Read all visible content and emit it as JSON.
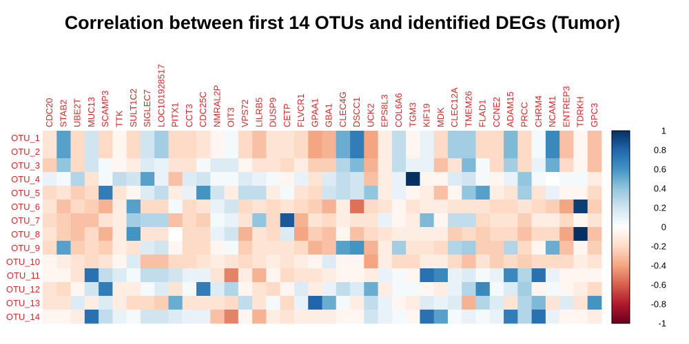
{
  "chart_data": {
    "type": "heatmap",
    "title": "Correlation between first 14 OTUs and identified DEGs (Tumor)",
    "columns": [
      "CDC20",
      "STAB2",
      "UBE2T",
      "MUC13",
      "SCAMP3",
      "TTK",
      "SULT1C2",
      "SIGLEC7",
      "LOC101928517",
      "PITX1",
      "CCT3",
      "CDC25C",
      "NMRAL2P",
      "OIT3",
      "VPS72",
      "LILRB5",
      "DUSP9",
      "CETP",
      "FLVCR1",
      "GPAA1",
      "GBA1",
      "CLEC4G",
      "DSCC1",
      "UCK2",
      "EPS8L3",
      "COL6A6",
      "TGM3",
      "KIF19",
      "MDK",
      "CLEC12A",
      "TMEM26",
      "FLAD1",
      "CCNE2",
      "ADAM15",
      "PRCC",
      "CHRM4",
      "NCAM1",
      "ENTREP3",
      "TDRKH",
      "GPC3"
    ],
    "rows": [
      "OTU_1",
      "OTU_2",
      "OTU_3",
      "OTU_4",
      "OTU_5",
      "OTU_6",
      "OTU_7",
      "OTU_8",
      "OTU_9",
      "OTU_10",
      "OTU_11",
      "OTU_12",
      "OTU_13",
      "OTU_14"
    ],
    "values": [
      [
        -0.15,
        0.55,
        -0.2,
        0.2,
        -0.2,
        -0.05,
        -0.2,
        0.2,
        0.35,
        -0.2,
        -0.2,
        -0.15,
        -0.05,
        0.05,
        -0.2,
        -0.3,
        -0.15,
        -0.15,
        -0.2,
        -0.4,
        -0.35,
        0.5,
        0.7,
        -0.4,
        -0.1,
        0.25,
        -0.05,
        0.1,
        -0.2,
        0.35,
        0.35,
        -0.2,
        -0.2,
        0.45,
        -0.2,
        0.05,
        0.65,
        -0.3,
        -0.05,
        -0.3
      ],
      [
        -0.15,
        0.55,
        -0.2,
        0.2,
        -0.2,
        -0.05,
        -0.2,
        0.2,
        0.35,
        -0.2,
        -0.2,
        -0.15,
        -0.05,
        0.05,
        -0.2,
        -0.3,
        -0.15,
        -0.15,
        -0.2,
        -0.4,
        -0.35,
        0.5,
        0.7,
        -0.4,
        -0.1,
        0.25,
        -0.05,
        0.1,
        -0.2,
        0.35,
        0.35,
        -0.2,
        -0.2,
        0.45,
        -0.2,
        0.05,
        0.65,
        -0.3,
        -0.05,
        -0.3
      ],
      [
        -0.25,
        0.4,
        -0.2,
        0.2,
        0.05,
        -0.05,
        -0.1,
        0.15,
        0.1,
        -0.15,
        -0.15,
        0.05,
        0.15,
        0.15,
        -0.05,
        -0.15,
        -0.15,
        -0.2,
        -0.1,
        -0.25,
        -0.25,
        0.3,
        0.45,
        -0.35,
        -0.1,
        0.25,
        0.1,
        0.1,
        -0.3,
        -0.15,
        0.45,
        0.05,
        -0.2,
        0.35,
        -0.2,
        0.1,
        0.5,
        -0.2,
        -0.05,
        -0.3
      ],
      [
        0.1,
        0.05,
        0.3,
        -0.15,
        0.05,
        0.25,
        0.2,
        0.55,
        0.1,
        -0.3,
        0.15,
        0.2,
        0.05,
        0.05,
        0.15,
        0.1,
        0.05,
        -0.05,
        0.1,
        -0.15,
        0.15,
        0.25,
        0.2,
        -0.3,
        -0.1,
        0.1,
        1.0,
        -0.05,
        -0.05,
        0.15,
        0.2,
        0.05,
        -0.05,
        0.1,
        0.4,
        0.05,
        0.0,
        0.05,
        0.05,
        -0.1
      ],
      [
        -0.2,
        -0.15,
        -0.25,
        -0.2,
        0.7,
        -0.15,
        -0.05,
        0.15,
        0.25,
        -0.1,
        0.1,
        0.6,
        0.2,
        -0.1,
        0.25,
        0.25,
        -0.1,
        0.05,
        -0.15,
        -0.2,
        0.2,
        0.25,
        0.2,
        0.4,
        -0.1,
        0.1,
        -0.05,
        -0.1,
        -0.3,
        -0.05,
        0.4,
        0.55,
        -0.1,
        -0.15,
        0.35,
        -0.15,
        0.1,
        -0.05,
        -0.05,
        -0.2
      ],
      [
        -0.15,
        -0.3,
        -0.2,
        -0.25,
        -0.35,
        -0.1,
        0.55,
        -0.2,
        -0.2,
        0.05,
        -0.2,
        -0.15,
        0.1,
        0.2,
        -0.2,
        -0.15,
        -0.2,
        -0.15,
        -0.2,
        -0.25,
        -0.35,
        -0.1,
        -0.55,
        -0.2,
        -0.15,
        -0.05,
        -0.15,
        -0.1,
        -0.1,
        -0.15,
        -0.15,
        -0.15,
        -0.2,
        -0.2,
        -0.15,
        -0.2,
        -0.25,
        -0.4,
        0.95,
        -0.25
      ],
      [
        -0.2,
        -0.25,
        -0.3,
        -0.3,
        -0.15,
        -0.1,
        0.35,
        0.3,
        0.3,
        -0.3,
        -0.2,
        -0.25,
        0.05,
        0.1,
        -0.15,
        0.4,
        -0.2,
        0.85,
        -0.35,
        -0.15,
        -0.2,
        -0.1,
        -0.15,
        -0.15,
        0.1,
        -0.05,
        -0.1,
        0.45,
        -0.05,
        0.25,
        0.25,
        -0.2,
        -0.15,
        -0.15,
        -0.25,
        -0.1,
        -0.1,
        -0.2,
        -0.05,
        -0.15
      ],
      [
        -0.15,
        -0.25,
        -0.3,
        -0.2,
        -0.35,
        -0.1,
        0.6,
        -0.15,
        -0.15,
        0.0,
        -0.2,
        -0.2,
        0.1,
        0.2,
        -0.35,
        -0.15,
        -0.2,
        0.15,
        -0.4,
        -0.25,
        -0.3,
        -0.05,
        -0.3,
        -0.2,
        -0.15,
        -0.1,
        -0.1,
        -0.1,
        -0.1,
        -0.25,
        -0.2,
        -0.25,
        -0.2,
        -0.2,
        -0.3,
        -0.2,
        -0.2,
        -0.4,
        1.0,
        -0.3
      ],
      [
        -0.2,
        0.55,
        -0.25,
        -0.2,
        -0.25,
        -0.1,
        -0.15,
        0.15,
        0.2,
        -0.05,
        -0.2,
        -0.2,
        -0.05,
        0.05,
        -0.25,
        -0.15,
        -0.15,
        -0.15,
        -0.2,
        -0.35,
        -0.3,
        0.55,
        0.6,
        -0.35,
        -0.1,
        0.35,
        -0.15,
        -0.15,
        -0.2,
        0.3,
        0.35,
        -0.25,
        -0.25,
        0.3,
        -0.2,
        -0.05,
        0.5,
        -0.3,
        -0.05,
        -0.25
      ],
      [
        -0.05,
        -0.1,
        -0.15,
        -0.2,
        -0.15,
        -0.05,
        0.15,
        -0.3,
        -0.3,
        -0.2,
        -0.2,
        -0.15,
        -0.1,
        -0.15,
        -0.2,
        -0.15,
        -0.1,
        -0.15,
        -0.1,
        -0.05,
        0.15,
        -0.05,
        -0.05,
        -0.4,
        -0.1,
        -0.2,
        -0.2,
        -0.1,
        -0.1,
        -0.2,
        -0.3,
        -0.15,
        -0.25,
        -0.2,
        -0.25,
        -0.2,
        -0.2,
        -0.2,
        -0.1,
        -0.15
      ],
      [
        -0.05,
        -0.05,
        -0.15,
        0.75,
        0.25,
        0.15,
        0.05,
        0.25,
        0.25,
        0.2,
        0.1,
        0.1,
        -0.15,
        -0.5,
        -0.1,
        -0.35,
        -0.05,
        -0.2,
        -0.15,
        -0.15,
        -0.1,
        -0.05,
        -0.05,
        -0.1,
        0.1,
        0.05,
        -0.05,
        0.75,
        0.65,
        0.1,
        0.15,
        0.05,
        0.1,
        0.65,
        0.3,
        0.75,
        0.1,
        -0.05,
        -0.05,
        -0.05
      ],
      [
        -0.15,
        -0.2,
        -0.05,
        0.2,
        0.7,
        -0.1,
        -0.1,
        0.05,
        0.15,
        -0.15,
        0.05,
        0.7,
        0.15,
        0.3,
        -0.05,
        -0.15,
        -0.2,
        -0.05,
        0.15,
        -0.1,
        0.1,
        0.25,
        0.15,
        0.5,
        -0.1,
        0.05,
        0.05,
        -0.05,
        -0.1,
        0.1,
        0.3,
        0.65,
        0.05,
        0.15,
        0.35,
        -0.05,
        0.05,
        -0.05,
        -0.1,
        -0.2
      ],
      [
        -0.15,
        -0.15,
        0.15,
        -0.1,
        0.15,
        -0.1,
        -0.2,
        -0.2,
        -0.25,
        0.5,
        -0.15,
        -0.15,
        -0.15,
        -0.2,
        0.25,
        -0.15,
        0.05,
        -0.2,
        0.1,
        0.8,
        0.5,
        0.05,
        -0.1,
        0.25,
        0.1,
        -0.05,
        -0.1,
        0.15,
        0.1,
        0.15,
        -0.35,
        0.3,
        0.15,
        -0.15,
        0.3,
        0.45,
        -0.15,
        0.15,
        -0.15,
        0.6
      ],
      [
        -0.05,
        -0.05,
        -0.1,
        0.75,
        0.25,
        0.1,
        0.05,
        0.2,
        0.2,
        0.15,
        0.1,
        0.1,
        -0.3,
        -0.5,
        -0.05,
        -0.35,
        -0.1,
        -0.15,
        -0.1,
        -0.1,
        -0.1,
        -0.05,
        -0.05,
        0.2,
        0.1,
        0.05,
        -0.05,
        0.75,
        0.55,
        0.05,
        0.1,
        0.05,
        0.1,
        0.7,
        0.3,
        0.75,
        0.1,
        -0.05,
        -0.05,
        -0.1
      ]
    ],
    "colorbar": {
      "range": [
        -1,
        1
      ],
      "ticks": [
        "1",
        "0.8",
        "0.6",
        "0.4",
        "0.2",
        "0",
        "-0.2",
        "-0.4",
        "-0.6",
        "-0.8",
        "-1"
      ],
      "tick_values": [
        1,
        0.8,
        0.6,
        0.4,
        0.2,
        0,
        -0.2,
        -0.4,
        -0.6,
        -0.8,
        -1
      ],
      "colors": {
        "negative": "#67001f",
        "neutral": "#ffffff",
        "positive": "#053061"
      }
    },
    "grid": false,
    "legend": "right",
    "label_color": "#d62728"
  }
}
